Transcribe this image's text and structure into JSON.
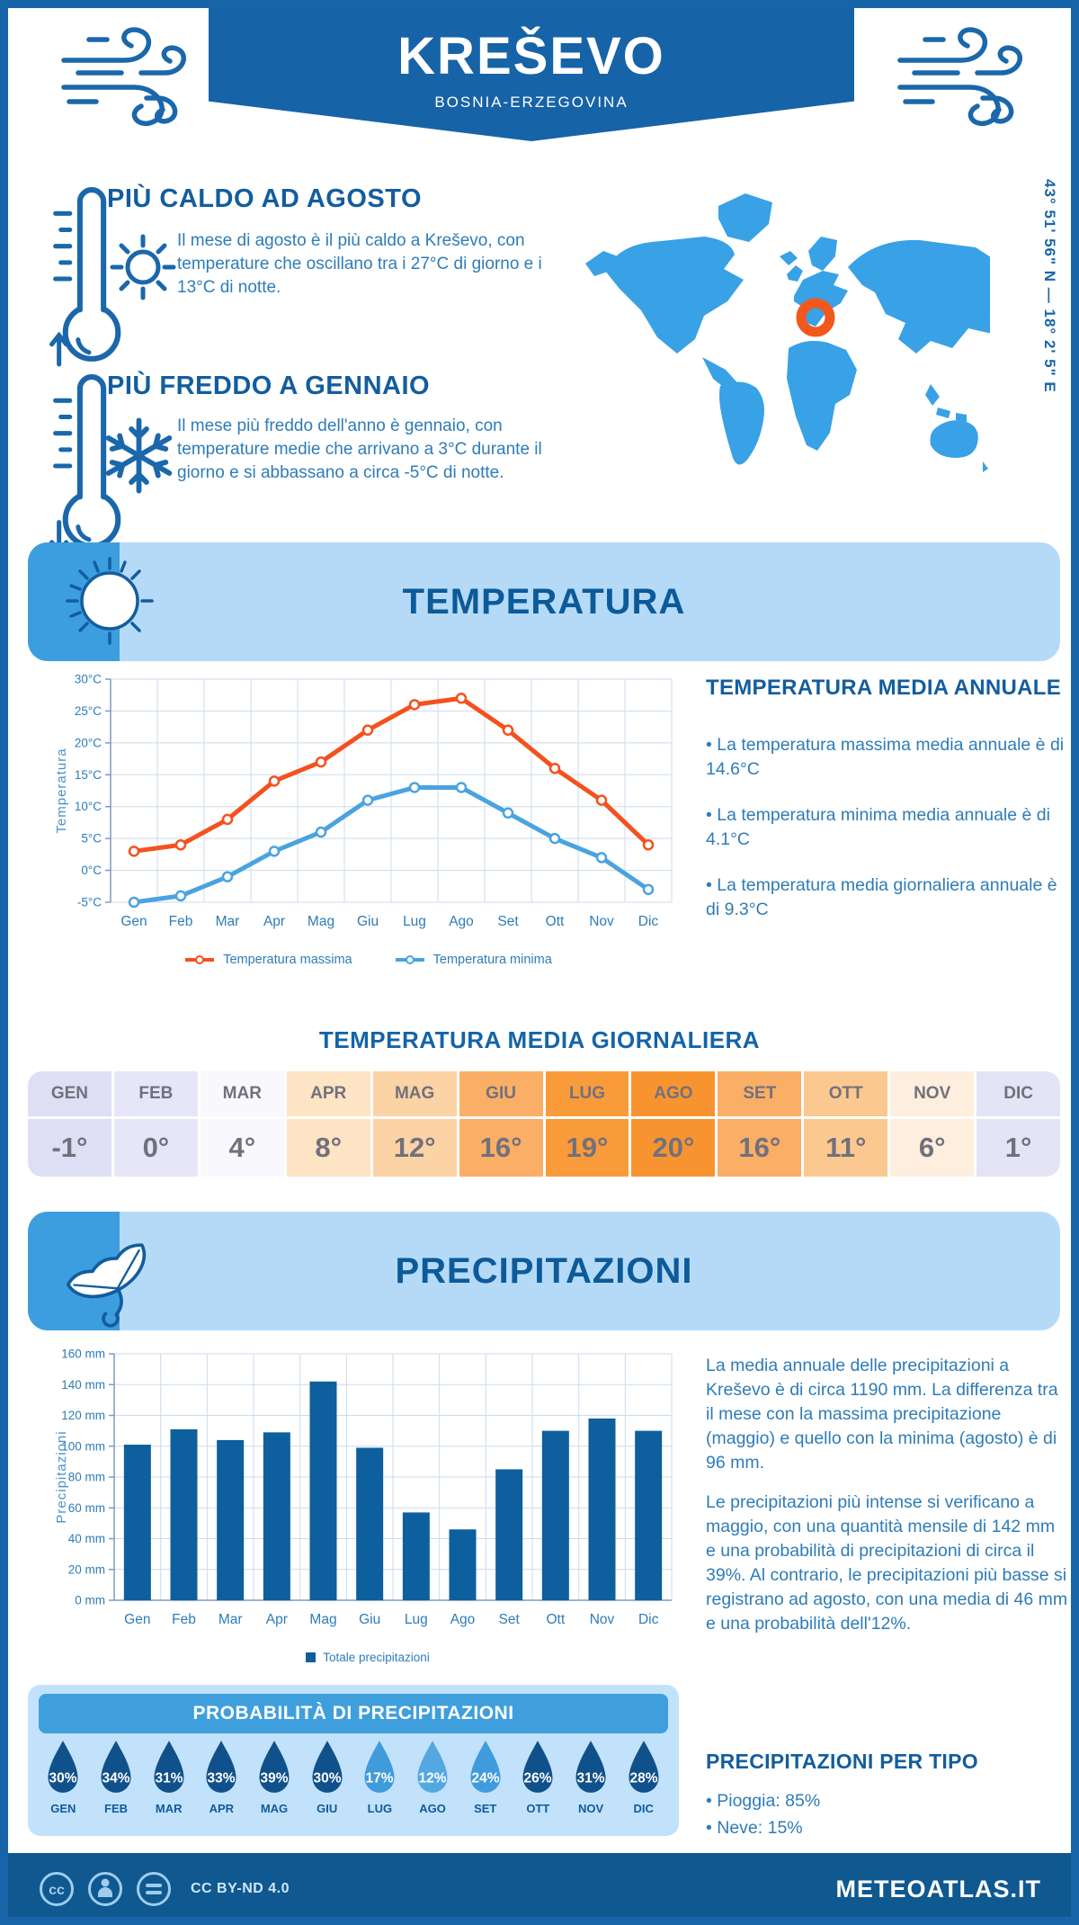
{
  "header": {
    "title": "KREŠEVO",
    "subtitle": "BOSNIA-ERZEGOVINA"
  },
  "coordinates": "43° 51' 56\" N — 18° 2' 5\" E",
  "highlights": [
    {
      "title": "PIÙ CALDO AD AGOSTO",
      "text": "Il mese di agosto è il più caldo a Kreševo, con temperature che oscillano tra i 27°C di giorno e i 13°C di notte.",
      "icons": [
        "thermometer-hot-icon",
        "sun-icon",
        "arrow-up-icon"
      ]
    },
    {
      "title": "PIÙ FREDDO A GENNAIO",
      "text": "Il mese più freddo dell'anno è gennaio, con temperature medie che arrivano a 3°C durante il giorno e si abbassano a circa -5°C di notte.",
      "icons": [
        "thermometer-cold-icon",
        "snowflake-icon",
        "arrow-down-icon"
      ]
    }
  ],
  "sections": {
    "temperature_banner": "TEMPERATURA",
    "precipitation_banner": "PRECIPITAZIONI"
  },
  "annual_stats": {
    "title": "TEMPERATURA MEDIA ANNUALE",
    "items": [
      "• La temperatura massima media annuale è di 14.6°C",
      "• La temperatura minima media annuale è di 4.1°C",
      "• La temperatura media giornaliera annuale è di 9.3°C"
    ]
  },
  "daily_table": {
    "title": "TEMPERATURA MEDIA GIORNALIERA",
    "months": [
      {
        "label": "GEN",
        "value": "-1°",
        "color": "#dedef4"
      },
      {
        "label": "FEB",
        "value": "0°",
        "color": "#e6e6f8"
      },
      {
        "label": "MAR",
        "value": "4°",
        "color": "#f8f8fd"
      },
      {
        "label": "APR",
        "value": "8°",
        "color": "#fde4c4"
      },
      {
        "label": "MAG",
        "value": "12°",
        "color": "#fcd3a5"
      },
      {
        "label": "GIU",
        "value": "16°",
        "color": "#faae66"
      },
      {
        "label": "LUG",
        "value": "19°",
        "color": "#f99b3a"
      },
      {
        "label": "AGO",
        "value": "20°",
        "color": "#f89430"
      },
      {
        "label": "SET",
        "value": "16°",
        "color": "#faae66"
      },
      {
        "label": "OTT",
        "value": "11°",
        "color": "#fbc88f"
      },
      {
        "label": "NOV",
        "value": "6°",
        "color": "#fdeedd"
      },
      {
        "label": "DIC",
        "value": "1°",
        "color": "#e4e4f6"
      }
    ]
  },
  "precip_text": {
    "p1": "La media annuale delle precipitazioni a Kreševo è di circa 1190 mm. La differenza tra il mese con la massima precipitazione (maggio) e quello con la minima (agosto) è di 96 mm.",
    "p2": "Le precipitazioni più intense si verificano a maggio, con una quantità mensile di 142 mm e una probabilità di precipitazioni di circa il 39%. Al contrario, le precipitazioni più basse si registrano ad agosto, con una media di 46 mm e una probabilità dell'12%."
  },
  "precip_prob": {
    "title": "PROBABILITÀ DI PRECIPITAZIONI",
    "months": [
      {
        "label": "GEN",
        "value": "30%",
        "color": "#11518b"
      },
      {
        "label": "FEB",
        "value": "34%",
        "color": "#11518b"
      },
      {
        "label": "MAR",
        "value": "31%",
        "color": "#11518b"
      },
      {
        "label": "APR",
        "value": "33%",
        "color": "#11518b"
      },
      {
        "label": "MAG",
        "value": "39%",
        "color": "#11518b"
      },
      {
        "label": "GIU",
        "value": "30%",
        "color": "#11518b"
      },
      {
        "label": "LUG",
        "value": "17%",
        "color": "#3f9bdc"
      },
      {
        "label": "AGO",
        "value": "12%",
        "color": "#54a8e2"
      },
      {
        "label": "SET",
        "value": "24%",
        "color": "#3f9bdc"
      },
      {
        "label": "OTT",
        "value": "26%",
        "color": "#11518b"
      },
      {
        "label": "NOV",
        "value": "31%",
        "color": "#11518b"
      },
      {
        "label": "DIC",
        "value": "28%",
        "color": "#11518b"
      }
    ]
  },
  "precip_type": {
    "title": "PRECIPITAZIONI PER TIPO",
    "items": [
      "• Pioggia: 85%",
      "• Neve: 15%"
    ]
  },
  "footer": {
    "license": "CC BY-ND 4.0",
    "site": "METEOATLAS.IT"
  },
  "colors": {
    "brand_blue": "#1763a7",
    "banner_light_blue": "#b5daf8",
    "banner_corner_blue": "#3d9edf",
    "map_blue": "#39a1e6",
    "marker_orange": "#f2581d"
  },
  "chart_data": [
    {
      "type": "line",
      "title": "",
      "categories": [
        "Gen",
        "Feb",
        "Mar",
        "Apr",
        "Mag",
        "Giu",
        "Lug",
        "Ago",
        "Set",
        "Ott",
        "Nov",
        "Dic"
      ],
      "series": [
        {
          "name": "Temperatura massima",
          "color": "#f4511e",
          "values": [
            3,
            4,
            8,
            14,
            17,
            22,
            26,
            27,
            22,
            16,
            11,
            4
          ]
        },
        {
          "name": "Temperatura minima",
          "color": "#4aa3e0",
          "values": [
            -5,
            -4,
            -1,
            3,
            6,
            11,
            13,
            13,
            9,
            5,
            2,
            -3
          ]
        }
      ],
      "xlabel": "",
      "ylabel": "Temperatura",
      "ylim": [
        -5,
        30
      ],
      "ytick_step": 5,
      "ytick_suffix": "°C",
      "grid": true,
      "legend_position": "bottom"
    },
    {
      "type": "bar",
      "title": "",
      "categories": [
        "Gen",
        "Feb",
        "Mar",
        "Apr",
        "Mag",
        "Giu",
        "Lug",
        "Ago",
        "Set",
        "Ott",
        "Nov",
        "Dic"
      ],
      "values": [
        101,
        111,
        104,
        109,
        142,
        99,
        57,
        46,
        85,
        110,
        118,
        110
      ],
      "color": "#0d5f9e",
      "xlabel": "",
      "ylabel": "Precipitazioni",
      "ylim": [
        0,
        160
      ],
      "ytick_step": 20,
      "ytick_suffix": " mm",
      "legend": "Totale precipitazioni",
      "grid": true,
      "legend_position": "bottom"
    }
  ]
}
